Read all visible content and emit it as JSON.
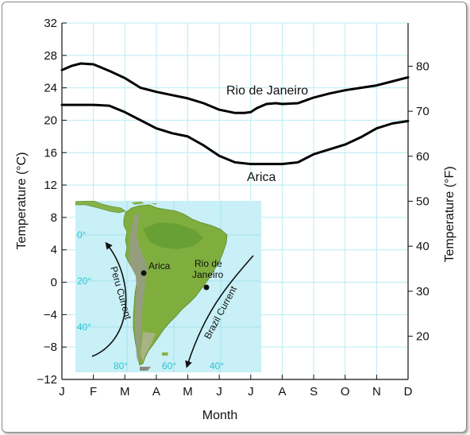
{
  "chart_data": {
    "type": "line",
    "xlabel": "Month",
    "ylabel": "Temperature (°C)",
    "y2label": "Temperature (°F)",
    "categories": [
      "J",
      "F",
      "M",
      "A",
      "M",
      "J",
      "J",
      "A",
      "S",
      "O",
      "N",
      "D"
    ],
    "ylim": [
      -12,
      32
    ],
    "yticks": [
      -12,
      -8,
      -4,
      0,
      4,
      8,
      12,
      16,
      20,
      24,
      28,
      32
    ],
    "y2ticks": [
      20,
      30,
      40,
      50,
      60,
      70,
      80
    ],
    "grid": true,
    "series": [
      {
        "name": "Rio de Janeiro",
        "color": "#000000",
        "x": [
          0,
          0.3,
          0.6,
          1,
          1.5,
          2,
          2.5,
          3,
          3.5,
          4,
          4.5,
          5,
          5.5,
          5.8,
          6,
          6.2,
          6.5,
          6.8,
          7,
          7.5,
          8,
          8.5,
          9,
          9.5,
          10,
          10.5,
          11
        ],
        "values": [
          26.2,
          26.7,
          27.0,
          26.9,
          26.1,
          25.2,
          24.0,
          23.5,
          23.1,
          22.7,
          22.1,
          21.3,
          20.9,
          20.9,
          21.0,
          21.5,
          22.0,
          22.1,
          22.0,
          22.1,
          22.8,
          23.3,
          23.7,
          24.0,
          24.3,
          24.8,
          25.3
        ]
      },
      {
        "name": "Arica",
        "color": "#000000",
        "x": [
          0,
          0.5,
          1,
          1.5,
          2,
          2.5,
          3,
          3.5,
          4,
          4.5,
          5,
          5.5,
          6,
          6.5,
          7,
          7.5,
          8,
          8.5,
          9,
          9.5,
          10,
          10.5,
          11
        ],
        "values": [
          21.9,
          21.9,
          21.9,
          21.8,
          21.0,
          20.0,
          19.0,
          18.4,
          18.0,
          16.9,
          15.6,
          14.8,
          14.6,
          14.6,
          14.6,
          14.8,
          15.8,
          16.4,
          17.0,
          17.9,
          19.0,
          19.6,
          19.9
        ]
      }
    ],
    "annotations": {
      "rio_curve_label": "Rio de Janeiro",
      "arica_curve_label": "Arica"
    }
  },
  "inset_map": {
    "label_arica": "Arica",
    "label_rio_line1": "Rio de",
    "label_rio_line2": "Janeiro",
    "current_left": "Peru Current",
    "current_right": "Brazil Current",
    "lat_0": "0°",
    "lat_20": "20°",
    "lat_40": "40°",
    "lon_80": "80°",
    "lon_60": "60°",
    "lon_40": "40°",
    "water_color": "#c8f0f6",
    "land_color": "#7fae3e",
    "grid_label_color": "#27c6d6"
  }
}
